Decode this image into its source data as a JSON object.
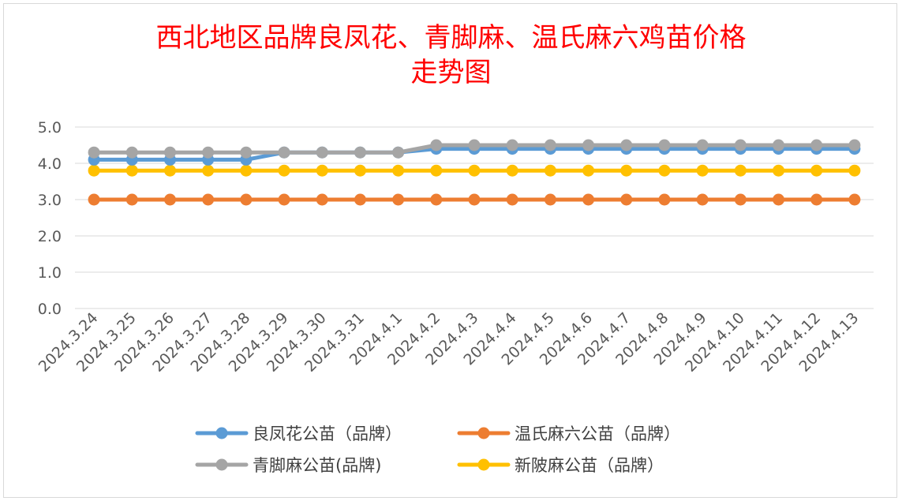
{
  "chart_data": {
    "type": "line",
    "title_line1": "西北地区品牌良凤花、青脚麻、温氏麻六鸡苗价格",
    "title_line2": "走势图",
    "xlabel": "",
    "ylabel": "",
    "ylim": [
      0,
      5
    ],
    "yticks": [
      "0.0",
      "1.0",
      "2.0",
      "3.0",
      "4.0",
      "5.0"
    ],
    "grid": true,
    "legend_position": "bottom",
    "categories": [
      "2024.3.24",
      "2024.3.25",
      "2024.3.26",
      "2024.3.27",
      "2024.3.28",
      "2024.3.29",
      "2024.3.30",
      "2024.3.31",
      "2024.4.1",
      "2024.4.2",
      "2024.4.3",
      "2024.4.4",
      "2024.4.5",
      "2024.4.6",
      "2024.4.7",
      "2024.4.8",
      "2024.4.9",
      "2024.4.10",
      "2024.4.11",
      "2024.4.12",
      "2024.4.13"
    ],
    "series": [
      {
        "name": "良凤花公苗（品牌）",
        "color": "#5b9bd5",
        "values": [
          4.1,
          4.1,
          4.1,
          4.1,
          4.1,
          4.3,
          4.3,
          4.3,
          4.3,
          4.4,
          4.4,
          4.4,
          4.4,
          4.4,
          4.4,
          4.4,
          4.4,
          4.4,
          4.4,
          4.4,
          4.4
        ]
      },
      {
        "name": "温氏麻六公苗（品牌）",
        "color": "#ed7d31",
        "values": [
          3.0,
          3.0,
          3.0,
          3.0,
          3.0,
          3.0,
          3.0,
          3.0,
          3.0,
          3.0,
          3.0,
          3.0,
          3.0,
          3.0,
          3.0,
          3.0,
          3.0,
          3.0,
          3.0,
          3.0,
          3.0
        ]
      },
      {
        "name": "青脚麻公苗(品牌)",
        "color": "#a5a5a5",
        "values": [
          4.3,
          4.3,
          4.3,
          4.3,
          4.3,
          4.3,
          4.3,
          4.3,
          4.3,
          4.5,
          4.5,
          4.5,
          4.5,
          4.5,
          4.5,
          4.5,
          4.5,
          4.5,
          4.5,
          4.5,
          4.5
        ]
      },
      {
        "name": "新陂麻公苗（品牌）",
        "color": "#ffc000",
        "values": [
          3.8,
          3.8,
          3.8,
          3.8,
          3.8,
          3.8,
          3.8,
          3.8,
          3.8,
          3.8,
          3.8,
          3.8,
          3.8,
          3.8,
          3.8,
          3.8,
          3.8,
          3.8,
          3.8,
          3.8,
          3.8
        ]
      }
    ]
  }
}
